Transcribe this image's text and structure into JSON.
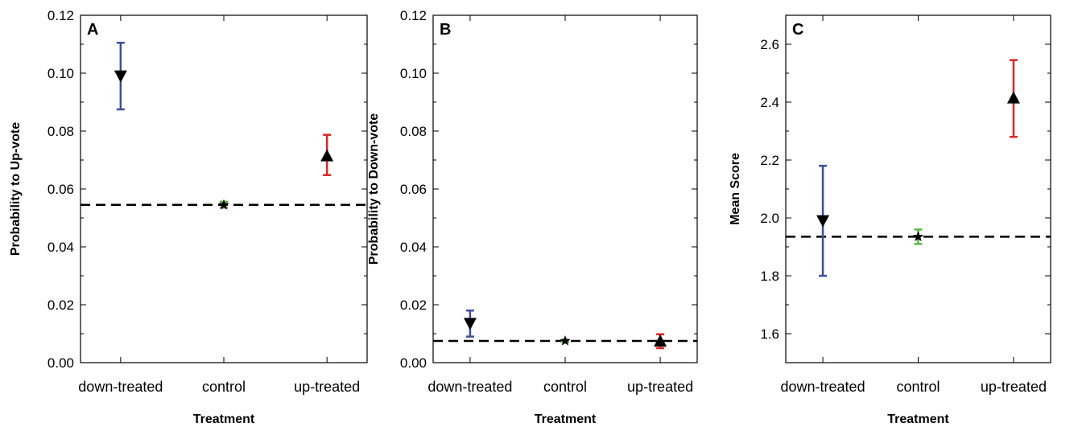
{
  "chart_data": [
    {
      "type": "scatter",
      "panel_label": "A",
      "xlabel": "Treatment",
      "ylabel": "Probability to Up-vote",
      "categories": [
        "down-treated",
        "control",
        "up-treated"
      ],
      "ylim": [
        0,
        0.12
      ],
      "yticks": [
        "0.00",
        "0.02",
        "0.04",
        "0.06",
        "0.08",
        "0.10",
        "0.12"
      ],
      "tick_values": [
        0,
        0.02,
        0.04,
        0.06,
        0.08,
        0.1,
        0.12
      ],
      "baseline": 0.0545,
      "points": [
        {
          "category": "down-treated",
          "value": 0.099,
          "lower": 0.0875,
          "upper": 0.1105,
          "marker": "triangle-down",
          "color": "#3a4fa0"
        },
        {
          "category": "control",
          "value": 0.0545,
          "lower": 0.0535,
          "upper": 0.0556,
          "marker": "star",
          "color": "#5cb846"
        },
        {
          "category": "up-treated",
          "value": 0.0715,
          "lower": 0.0648,
          "upper": 0.0787,
          "marker": "triangle-up",
          "color": "#e02424"
        }
      ],
      "grid": false
    },
    {
      "type": "scatter",
      "panel_label": "B",
      "xlabel": "Treatment",
      "ylabel": "Probability to Down-vote",
      "categories": [
        "down-treated",
        "control",
        "up-treated"
      ],
      "ylim": [
        0,
        0.12
      ],
      "yticks": [
        "0.00",
        "0.02",
        "0.04",
        "0.06",
        "0.08",
        "0.10",
        "0.12"
      ],
      "tick_values": [
        0,
        0.02,
        0.04,
        0.06,
        0.08,
        0.1,
        0.12
      ],
      "baseline": 0.0075,
      "points": [
        {
          "category": "down-treated",
          "value": 0.0135,
          "lower": 0.009,
          "upper": 0.018,
          "marker": "triangle-down",
          "color": "#3a4fa0"
        },
        {
          "category": "control",
          "value": 0.0075,
          "lower": 0.0071,
          "upper": 0.0079,
          "marker": "star",
          "color": "#5cb846"
        },
        {
          "category": "up-treated",
          "value": 0.0075,
          "lower": 0.005,
          "upper": 0.0098,
          "marker": "triangle-up",
          "color": "#e02424"
        }
      ],
      "grid": false
    },
    {
      "type": "scatter",
      "panel_label": "C",
      "xlabel": "Treatment",
      "ylabel": "Mean Score",
      "categories": [
        "down-treated",
        "control",
        "up-treated"
      ],
      "ylim": [
        1.5,
        2.7
      ],
      "yticks": [
        "1.6",
        "1.8",
        "2.0",
        "2.2",
        "2.4",
        "2.6"
      ],
      "tick_values": [
        1.6,
        1.8,
        2.0,
        2.2,
        2.4,
        2.6
      ],
      "baseline": 1.935,
      "points": [
        {
          "category": "down-treated",
          "value": 1.99,
          "lower": 1.8,
          "upper": 2.18,
          "marker": "triangle-down",
          "color": "#3a4fa0"
        },
        {
          "category": "control",
          "value": 1.935,
          "lower": 1.91,
          "upper": 1.96,
          "marker": "star",
          "color": "#5cb846"
        },
        {
          "category": "up-treated",
          "value": 2.415,
          "lower": 2.28,
          "upper": 2.545,
          "marker": "triangle-up",
          "color": "#e02424"
        }
      ],
      "grid": false
    }
  ]
}
